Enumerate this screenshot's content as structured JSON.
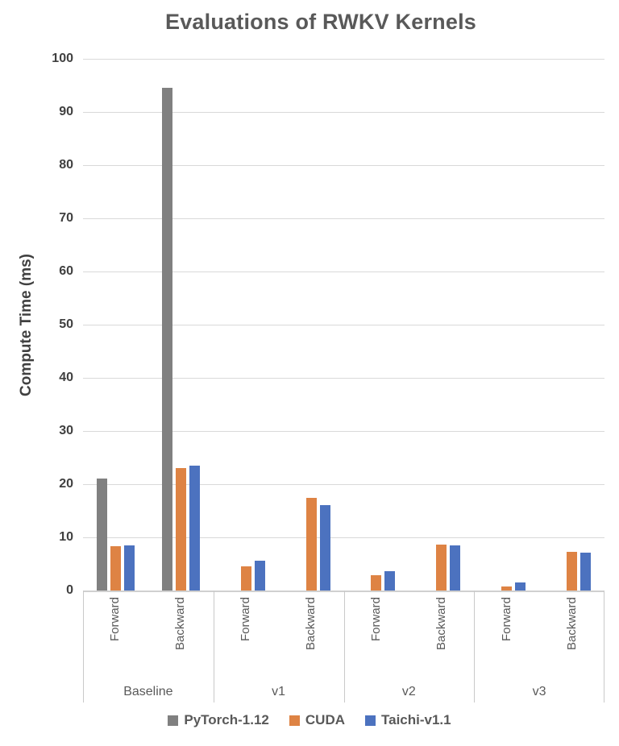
{
  "title": "Evaluations of RWKV Kernels",
  "chart_data": {
    "type": "bar",
    "title": "Evaluations of RWKV Kernels",
    "ylabel": "Compute Time (ms)",
    "xlabel": "",
    "ylim": [
      0,
      100
    ],
    "y_ticks": [
      0,
      10,
      20,
      30,
      40,
      50,
      60,
      70,
      80,
      90,
      100
    ],
    "grid": true,
    "legend_position": "bottom",
    "groups": [
      "Baseline",
      "v1",
      "v2",
      "v3"
    ],
    "subcategories": [
      "Forward",
      "Backward"
    ],
    "categories_flat": [
      "Baseline Forward",
      "Baseline Backward",
      "v1 Forward",
      "v1 Backward",
      "v2 Forward",
      "v2 Backward",
      "v3 Forward",
      "v3 Backward"
    ],
    "series": [
      {
        "name": "PyTorch-1.12",
        "color": "#808080",
        "values": [
          21,
          94.5,
          null,
          null,
          null,
          null,
          null,
          null
        ]
      },
      {
        "name": "CUDA",
        "color": "#DE8344",
        "values": [
          8.3,
          23,
          4.5,
          17.5,
          2.9,
          8.6,
          0.8,
          7.2
        ]
      },
      {
        "name": "Taichi-v1.1",
        "color": "#4C72BF",
        "values": [
          8.5,
          23.5,
          5.6,
          16.1,
          3.7,
          8.5,
          1.5,
          7.1
        ]
      }
    ]
  },
  "colors": {
    "title_text": "#595959",
    "axis_text": "#404040",
    "category_text": "#595959",
    "gridline": "#D9D9D9",
    "axis_line": "#D0D0D0",
    "divider": "#C9C9C9"
  }
}
